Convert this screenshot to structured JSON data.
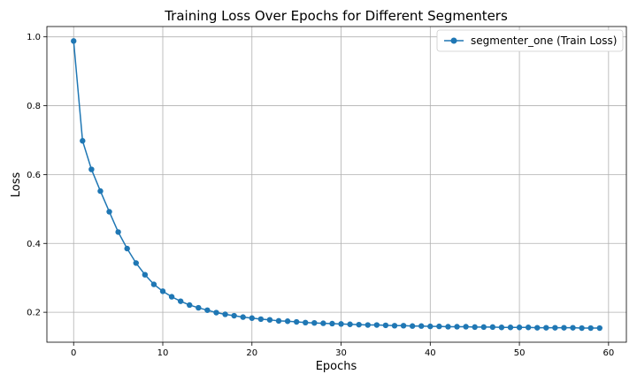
{
  "chart_data": {
    "type": "line",
    "title": "Training Loss Over Epochs for Different Segmenters",
    "xlabel": "Epochs",
    "ylabel": "Loss",
    "xlim": [
      -3,
      62
    ],
    "ylim": [
      0.113,
      1.03
    ],
    "xticks": [
      0,
      10,
      20,
      30,
      40,
      50,
      60
    ],
    "yticks": [
      0.2,
      0.4,
      0.6,
      0.8,
      1.0
    ],
    "grid": true,
    "legend_position": "top-right",
    "series": [
      {
        "name": "segmenter_one (Train Loss)",
        "color": "#1f77b4",
        "marker": "circle",
        "x": [
          0,
          1,
          2,
          3,
          4,
          5,
          6,
          7,
          8,
          9,
          10,
          11,
          12,
          13,
          14,
          15,
          16,
          17,
          18,
          19,
          20,
          21,
          22,
          23,
          24,
          25,
          26,
          27,
          28,
          29,
          30,
          31,
          32,
          33,
          34,
          35,
          36,
          37,
          38,
          39,
          40,
          41,
          42,
          43,
          44,
          45,
          46,
          47,
          48,
          49,
          50,
          51,
          52,
          53,
          54,
          55,
          56,
          57,
          58,
          59
        ],
        "values": [
          0.988,
          0.698,
          0.615,
          0.552,
          0.492,
          0.433,
          0.385,
          0.343,
          0.309,
          0.281,
          0.261,
          0.245,
          0.232,
          0.221,
          0.213,
          0.206,
          0.199,
          0.194,
          0.19,
          0.186,
          0.183,
          0.18,
          0.178,
          0.175,
          0.174,
          0.172,
          0.17,
          0.169,
          0.168,
          0.167,
          0.166,
          0.165,
          0.164,
          0.163,
          0.163,
          0.162,
          0.161,
          0.161,
          0.16,
          0.16,
          0.159,
          0.159,
          0.158,
          0.158,
          0.158,
          0.157,
          0.157,
          0.157,
          0.156,
          0.156,
          0.156,
          0.156,
          0.155,
          0.155,
          0.155,
          0.155,
          0.155,
          0.154,
          0.154,
          0.154
        ]
      }
    ]
  }
}
